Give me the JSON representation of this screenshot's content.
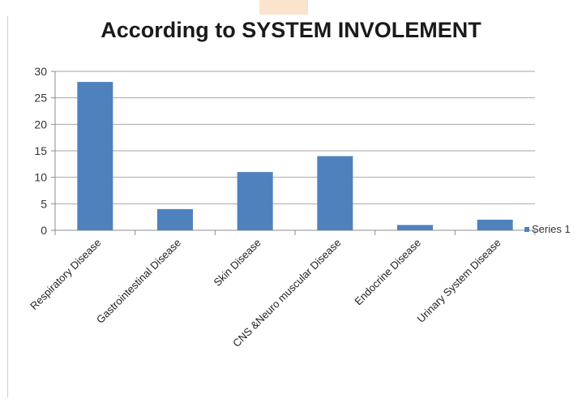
{
  "chart_data": {
    "type": "bar",
    "title": "According to SYSTEM INVOLEMENT",
    "xlabel": "",
    "ylabel": "",
    "categories": [
      "Respiratory Disease",
      "Gastrointestinal Disease",
      "Skin Disease",
      "CNS &Neuro muscular Disease",
      "Endocrine Disease",
      "Urinary System Disease"
    ],
    "series": [
      {
        "name": "Series 1",
        "values": [
          28,
          4,
          11,
          14,
          1,
          2
        ],
        "color": "#4f81bd"
      }
    ],
    "ylim": [
      0,
      30
    ],
    "yticks": [
      "0",
      "5",
      "10",
      "15",
      "20",
      "25",
      "30"
    ],
    "grid": true,
    "legend_position": "right"
  }
}
